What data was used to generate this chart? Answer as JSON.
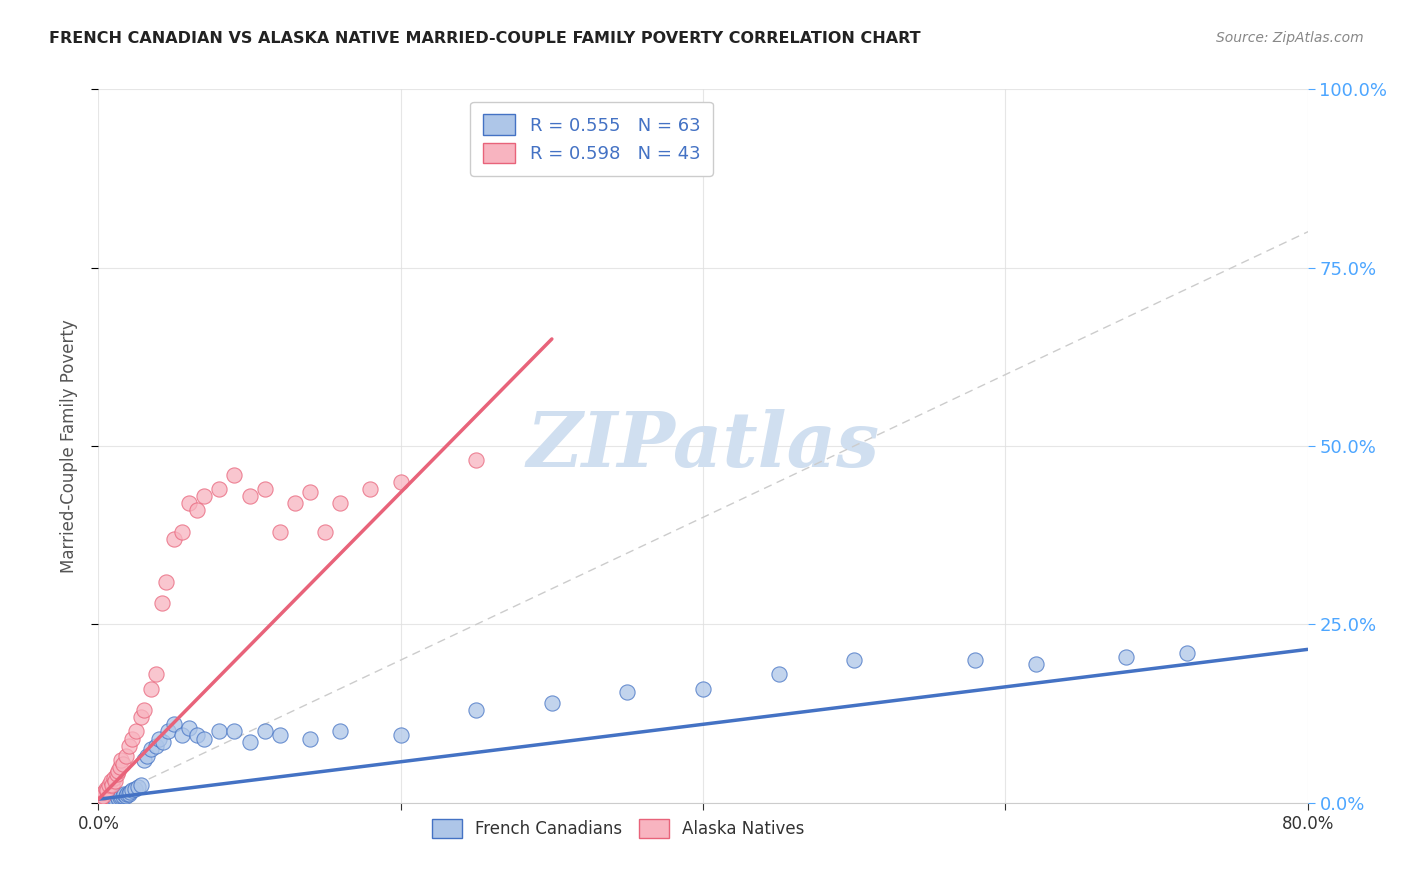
{
  "title": "FRENCH CANADIAN VS ALASKA NATIVE MARRIED-COUPLE FAMILY POVERTY CORRELATION CHART",
  "source": "Source: ZipAtlas.com",
  "ylabel_label": "Married-Couple Family Poverty",
  "xlim": [
    0.0,
    0.8
  ],
  "ylim": [
    0.0,
    1.0
  ],
  "legend_label1": "French Canadians",
  "legend_label2": "Alaska Natives",
  "R1": 0.555,
  "N1": 63,
  "R2": 0.598,
  "N2": 43,
  "color1": "#aec6e8",
  "color2": "#f8b4c0",
  "line1_color": "#4472c4",
  "line2_color": "#e8637a",
  "diag_color": "#cccccc",
  "watermark_color": "#d0dff0",
  "background_color": "#ffffff",
  "grid_color": "#e0e0e0",
  "french_canadian_x": [
    0.001,
    0.002,
    0.002,
    0.003,
    0.003,
    0.004,
    0.004,
    0.005,
    0.005,
    0.006,
    0.006,
    0.007,
    0.007,
    0.008,
    0.008,
    0.009,
    0.01,
    0.01,
    0.011,
    0.012,
    0.013,
    0.014,
    0.015,
    0.016,
    0.017,
    0.018,
    0.019,
    0.02,
    0.021,
    0.022,
    0.024,
    0.026,
    0.028,
    0.03,
    0.032,
    0.035,
    0.038,
    0.04,
    0.043,
    0.046,
    0.05,
    0.055,
    0.06,
    0.065,
    0.07,
    0.08,
    0.09,
    0.1,
    0.11,
    0.12,
    0.14,
    0.16,
    0.2,
    0.25,
    0.3,
    0.35,
    0.4,
    0.45,
    0.5,
    0.58,
    0.62,
    0.68,
    0.72
  ],
  "french_canadian_y": [
    0.005,
    0.005,
    0.008,
    0.004,
    0.007,
    0.006,
    0.009,
    0.005,
    0.008,
    0.006,
    0.009,
    0.005,
    0.007,
    0.006,
    0.009,
    0.005,
    0.008,
    0.01,
    0.006,
    0.009,
    0.007,
    0.008,
    0.01,
    0.009,
    0.012,
    0.01,
    0.013,
    0.012,
    0.015,
    0.018,
    0.02,
    0.022,
    0.025,
    0.06,
    0.065,
    0.075,
    0.08,
    0.09,
    0.085,
    0.1,
    0.11,
    0.095,
    0.105,
    0.095,
    0.09,
    0.1,
    0.1,
    0.085,
    0.1,
    0.095,
    0.09,
    0.1,
    0.095,
    0.13,
    0.14,
    0.155,
    0.16,
    0.18,
    0.2,
    0.2,
    0.195,
    0.205,
    0.21
  ],
  "alaska_native_x": [
    0.001,
    0.002,
    0.003,
    0.004,
    0.005,
    0.006,
    0.007,
    0.008,
    0.009,
    0.01,
    0.011,
    0.012,
    0.013,
    0.014,
    0.015,
    0.016,
    0.018,
    0.02,
    0.022,
    0.025,
    0.028,
    0.03,
    0.035,
    0.038,
    0.042,
    0.045,
    0.05,
    0.055,
    0.06,
    0.065,
    0.07,
    0.08,
    0.09,
    0.1,
    0.11,
    0.12,
    0.13,
    0.14,
    0.15,
    0.16,
    0.18,
    0.2,
    0.25
  ],
  "alaska_native_y": [
    0.005,
    0.008,
    0.01,
    0.015,
    0.02,
    0.018,
    0.025,
    0.03,
    0.025,
    0.035,
    0.03,
    0.04,
    0.045,
    0.05,
    0.06,
    0.055,
    0.065,
    0.08,
    0.09,
    0.1,
    0.12,
    0.13,
    0.16,
    0.18,
    0.28,
    0.31,
    0.37,
    0.38,
    0.42,
    0.41,
    0.43,
    0.44,
    0.46,
    0.43,
    0.44,
    0.38,
    0.42,
    0.435,
    0.38,
    0.42,
    0.44,
    0.45,
    0.48
  ],
  "fc_trend_x": [
    0.0,
    0.8
  ],
  "fc_trend_y": [
    0.005,
    0.215
  ],
  "an_trend_x": [
    0.0,
    0.3
  ],
  "an_trend_y": [
    0.005,
    0.65
  ]
}
